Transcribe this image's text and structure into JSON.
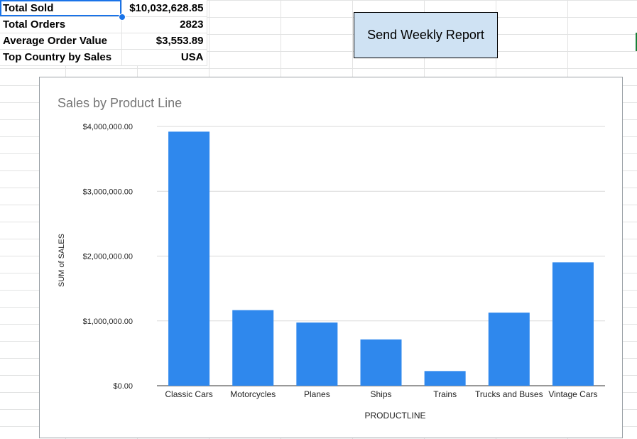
{
  "sheet": {
    "rows": [
      {
        "label": "Total Sold",
        "value": "$10,032,628.85"
      },
      {
        "label": "Total Orders",
        "value": "2823"
      },
      {
        "label": "Average Order Value",
        "value": "$3,553.89"
      },
      {
        "label": "Top Country by Sales",
        "value": "USA"
      }
    ]
  },
  "button": {
    "label": "Send Weekly Report"
  },
  "colors": {
    "bar": "#2f88ed",
    "grid": "#d9d9d9",
    "title": "#757575",
    "selection": "#1a73e8"
  },
  "chart_data": {
    "type": "bar",
    "title": "Sales by Product Line",
    "xlabel": "PRODUCTLINE",
    "ylabel": "SUM of SALES",
    "categories": [
      "Classic Cars",
      "Motorcycles",
      "Planes",
      "Ships",
      "Trains",
      "Trucks and Buses",
      "Vintage Cars"
    ],
    "values": [
      3919615.66,
      1166388.34,
      975003.57,
      714437.13,
      226243.47,
      1127789.84,
      1903150.84
    ],
    "ylim": [
      0,
      4000000
    ],
    "yticks": [
      0,
      1000000,
      2000000,
      3000000,
      4000000
    ],
    "ytick_labels": [
      "$0.00",
      "$1,000,000.00",
      "$2,000,000.00",
      "$3,000,000.00",
      "$4,000,000.00"
    ],
    "grid": true,
    "legend": "none"
  }
}
